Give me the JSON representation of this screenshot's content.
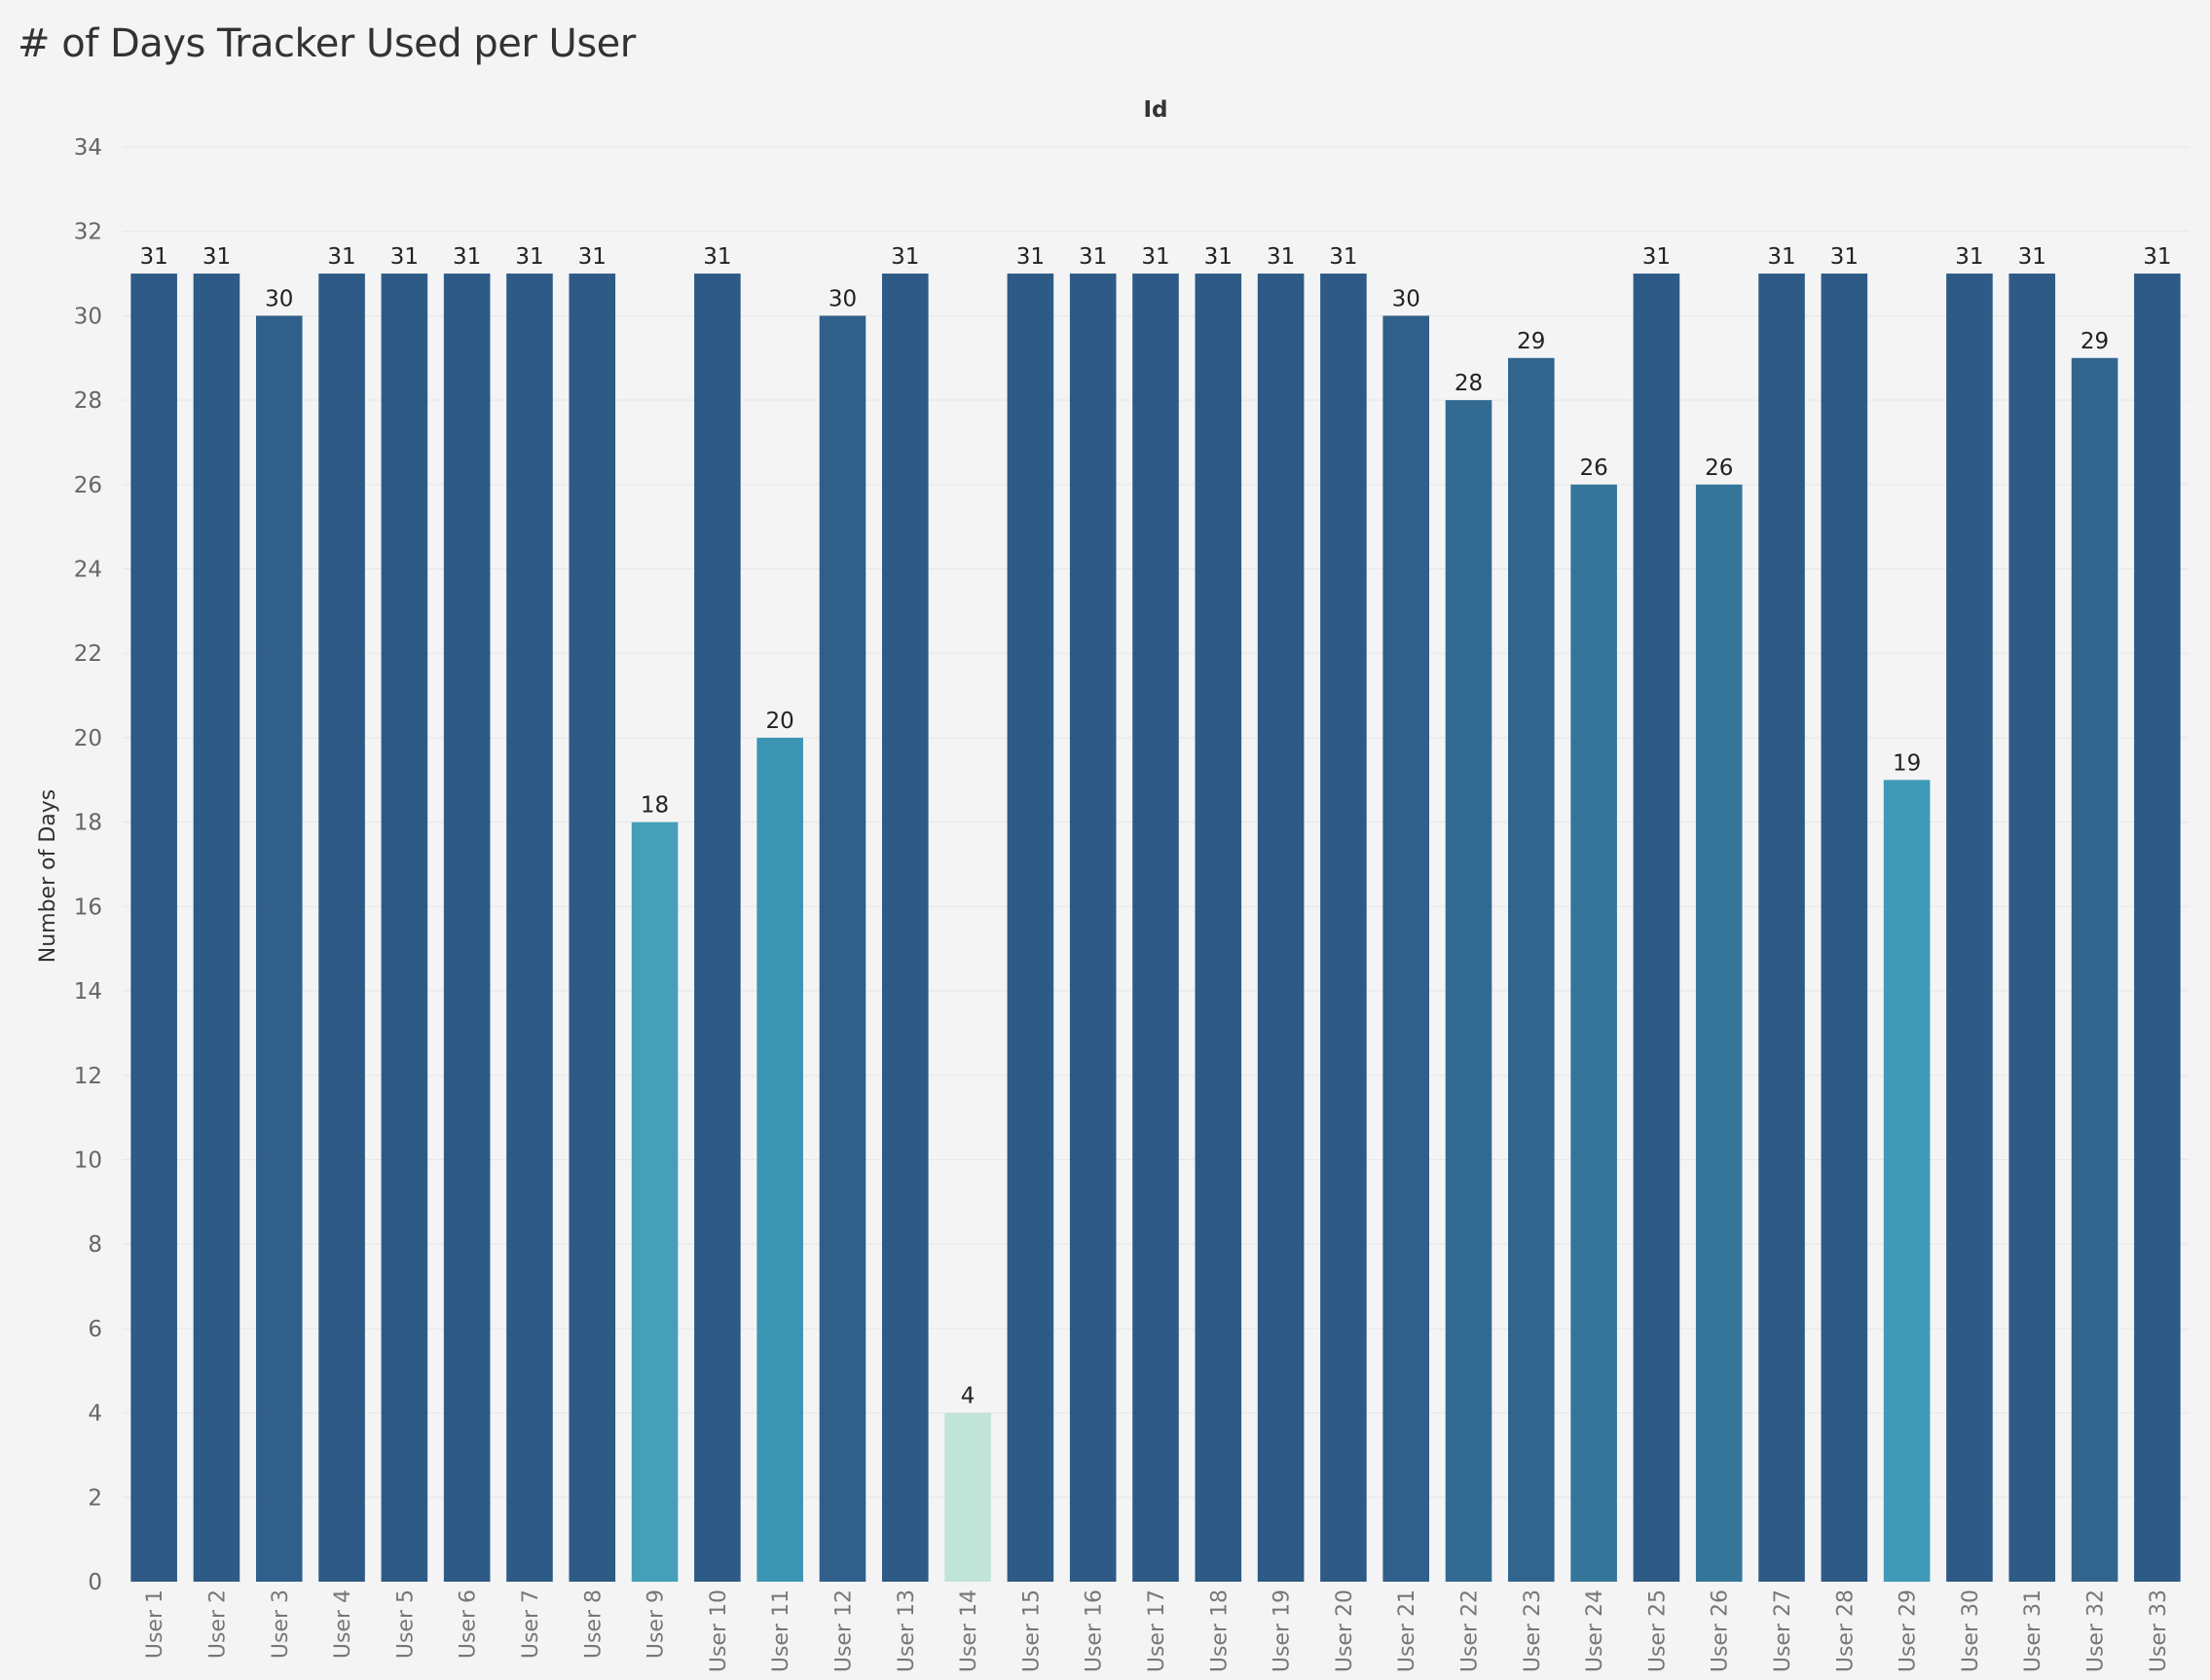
{
  "page": {
    "title": "# of Days Tracker Used per User"
  },
  "chart_data": {
    "type": "bar",
    "title": "# of Days Tracker Used per User",
    "column_header": "Id",
    "xlabel": "",
    "ylabel": "Number of Days",
    "ylim": [
      0,
      34
    ],
    "yticks": [
      0,
      2,
      4,
      6,
      8,
      10,
      12,
      14,
      16,
      18,
      20,
      22,
      24,
      26,
      28,
      30,
      32,
      34
    ],
    "grid": true,
    "legend": "none",
    "color_scale": {
      "low": "#c1e4d9",
      "mid": "#3e9bb7",
      "high": "#2e5a86"
    },
    "categories": [
      "User 1",
      "User 2",
      "User 3",
      "User 4",
      "User 5",
      "User 6",
      "User 7",
      "User 8",
      "User 9",
      "User 10",
      "User 11",
      "User 12",
      "User 13",
      "User 14",
      "User 15",
      "User 16",
      "User 17",
      "User 18",
      "User 19",
      "User 20",
      "User 21",
      "User 22",
      "User 23",
      "User 24",
      "User 25",
      "User 26",
      "User 27",
      "User 28",
      "User 29",
      "User 30",
      "User 31",
      "User 32",
      "User 33"
    ],
    "values": [
      31,
      31,
      30,
      31,
      31,
      31,
      31,
      31,
      18,
      31,
      20,
      30,
      31,
      4,
      31,
      31,
      31,
      31,
      31,
      31,
      30,
      28,
      29,
      26,
      31,
      26,
      31,
      31,
      19,
      31,
      31,
      29,
      31
    ]
  }
}
